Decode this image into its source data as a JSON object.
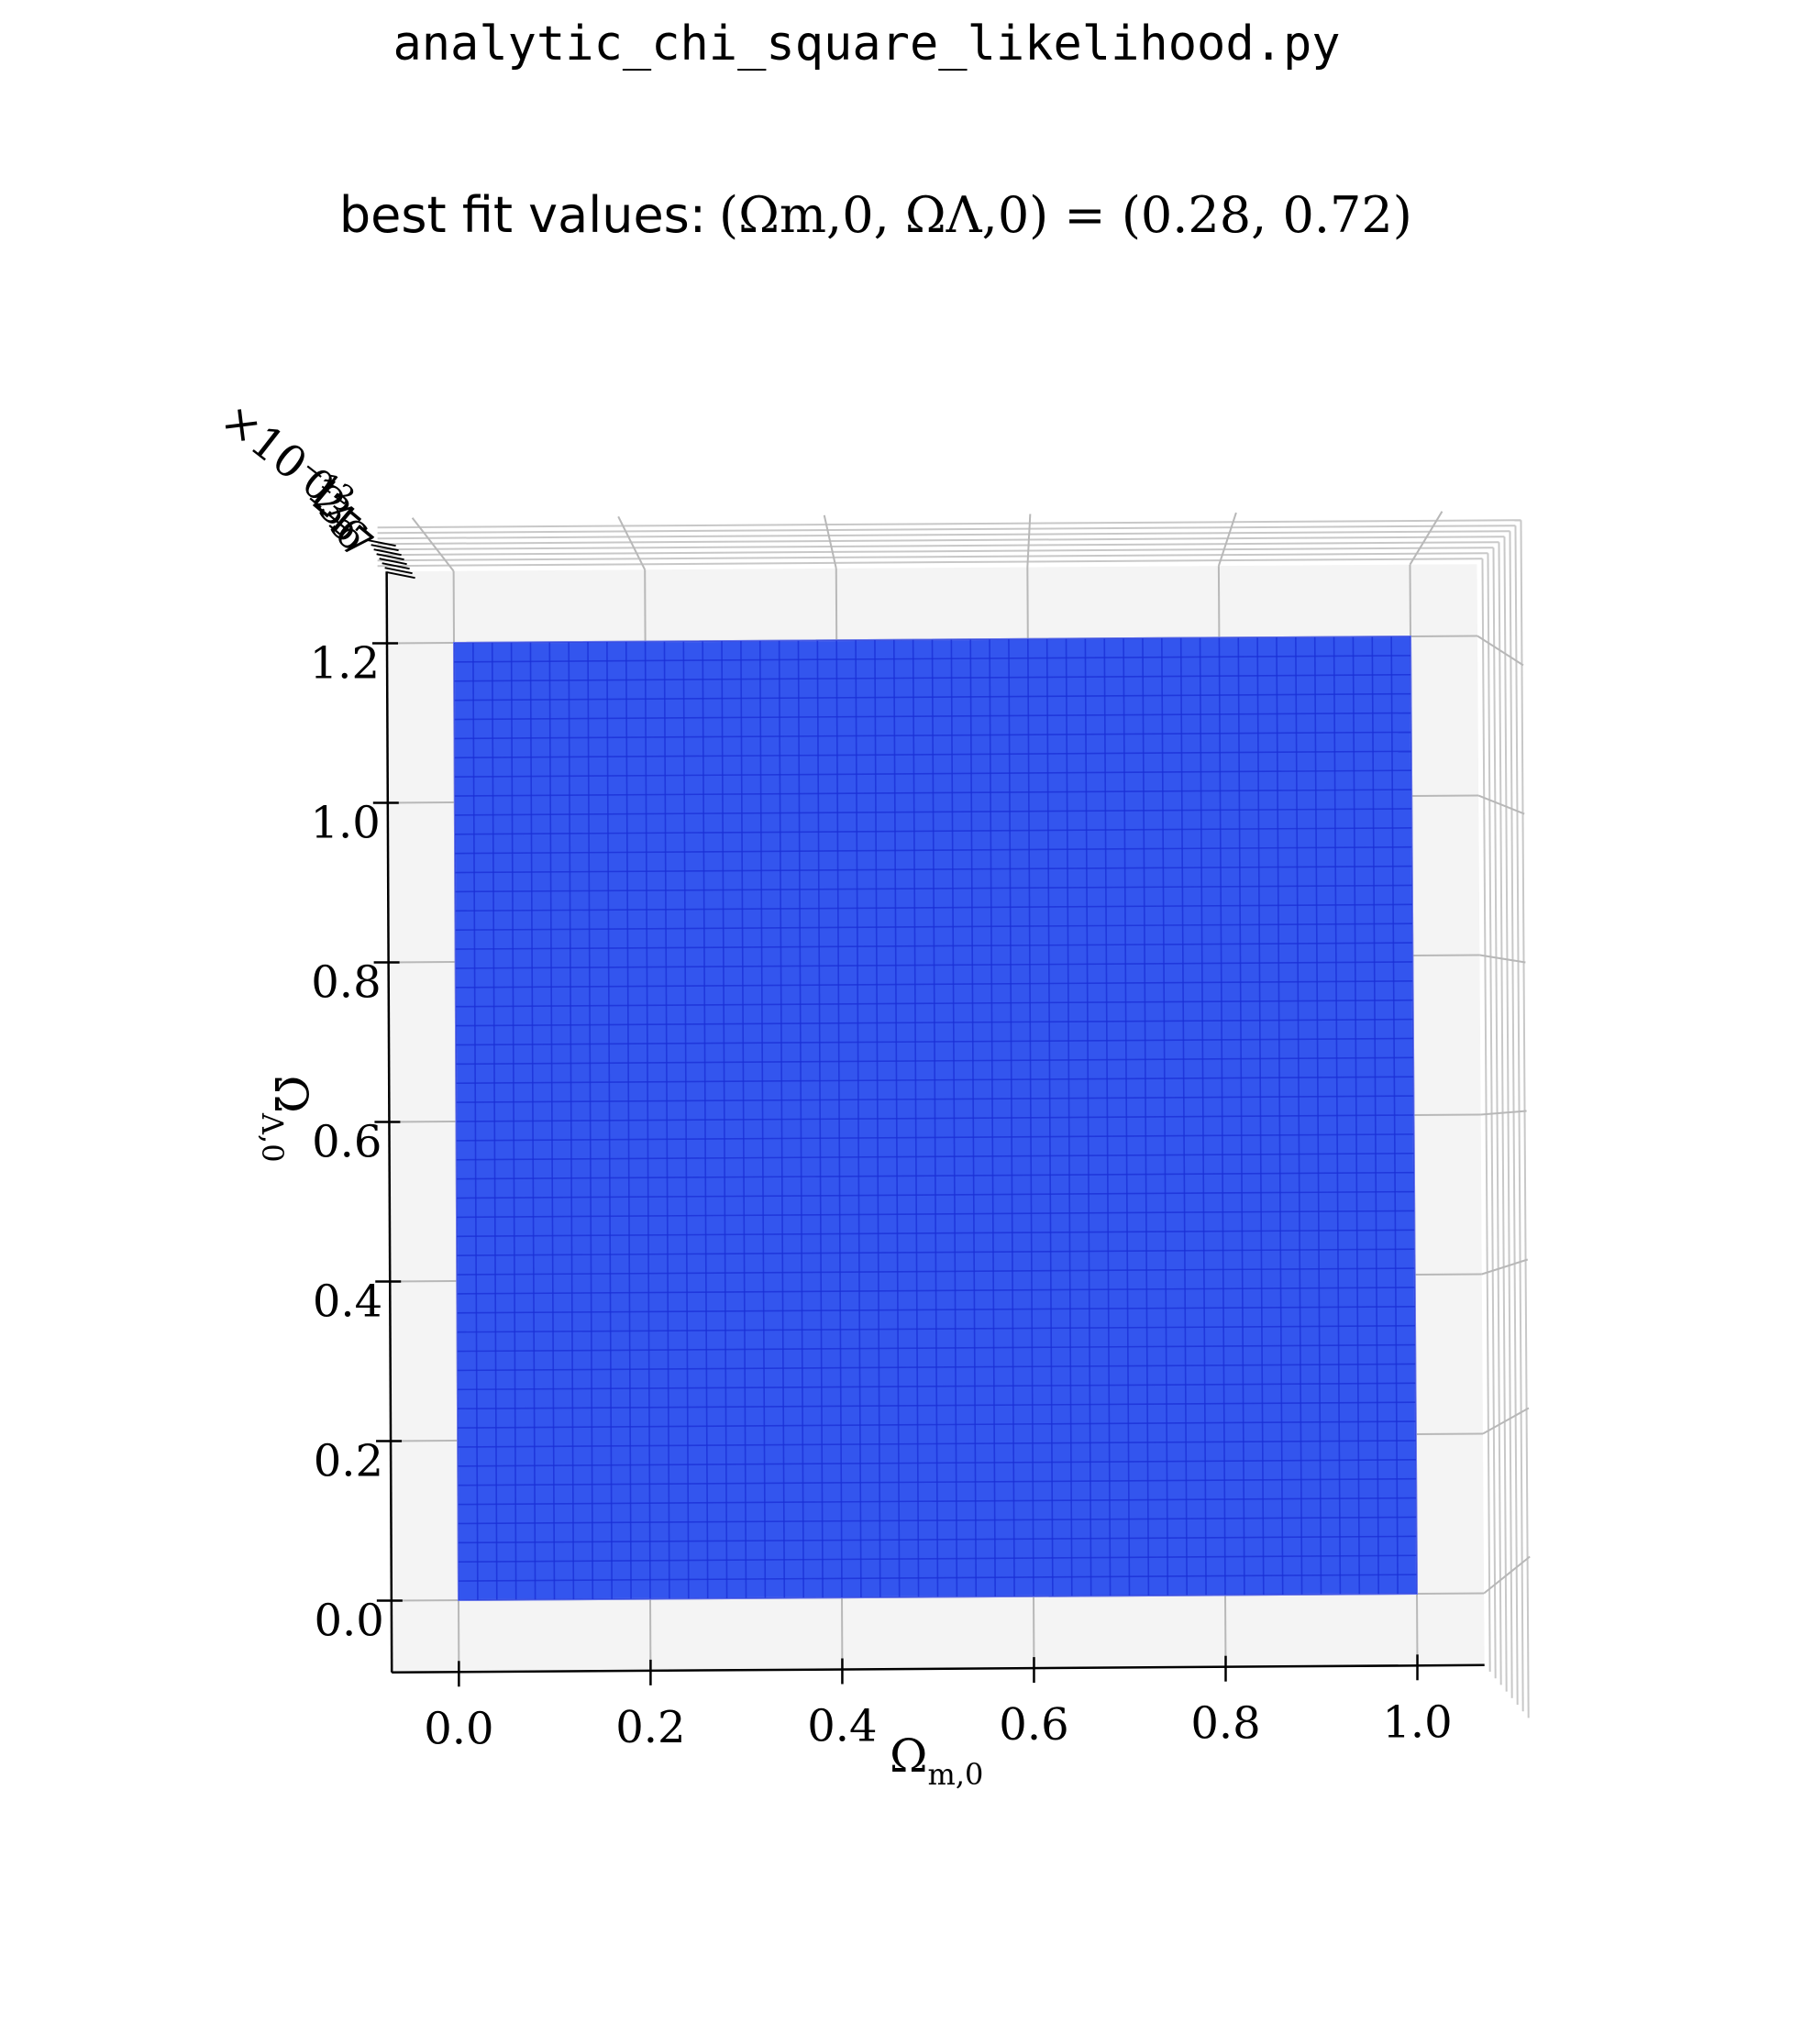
{
  "window": {
    "title": "analytic_chi_square_likelihood.py"
  },
  "chart_data": {
    "type": "surface",
    "title_prefix": "best fit values: ",
    "title_math": "(Ωm,0, ΩΛ,0) = (0.28, 0.72)",
    "title": "best fit values: (Ωm,0, ΩΛ,0) = (0.28, 0.72)",
    "best_fit": {
      "omega_m": 0.28,
      "omega_lambda": 0.72
    },
    "xlabel": {
      "base": "Ω",
      "sub": "m,0"
    },
    "ylabel": {
      "base": "Ω",
      "sub": "Λ,0"
    },
    "xlim": [
      -0.07,
      1.07
    ],
    "ylim": [
      -0.09,
      1.29
    ],
    "x_ticks": [
      "0.0",
      "0.2",
      "0.4",
      "0.6",
      "0.8",
      "1.0"
    ],
    "y_ticks": [
      "0.0",
      "0.2",
      "0.4",
      "0.6",
      "0.8",
      "1.0",
      "1.2"
    ],
    "x_tick_values": [
      0,
      0.2,
      0.4,
      0.6,
      0.8,
      1.0
    ],
    "y_tick_values": [
      0,
      0.2,
      0.4,
      0.6,
      0.8,
      1.0,
      1.2
    ],
    "z_axis_text": "×10⁻¹²",
    "z_tick_labels": [
      "0",
      "1",
      "2",
      "3",
      "4",
      "5",
      "6",
      "7"
    ],
    "surface_domain": {
      "x": [
        0,
        1.0
      ],
      "y": [
        0,
        1.2
      ]
    },
    "grid_resolution": 50,
    "colormap": "coolwarm",
    "surface_color": "#3355ee",
    "peak_color": "#c0262c",
    "grid": true,
    "view": "top-down"
  }
}
